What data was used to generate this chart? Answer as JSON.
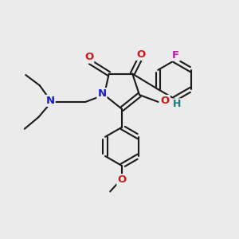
{
  "background_color": "#ebebeb",
  "bond_color": "#1a1a1a",
  "N_color": "#1919cc",
  "O_color": "#cc1919",
  "F_color": "#bb19bb",
  "H_color": "#197878",
  "figsize": [
    3.0,
    3.0
  ],
  "dpi": 100,
  "xlim": [
    0,
    10
  ],
  "ylim": [
    0,
    10
  ]
}
